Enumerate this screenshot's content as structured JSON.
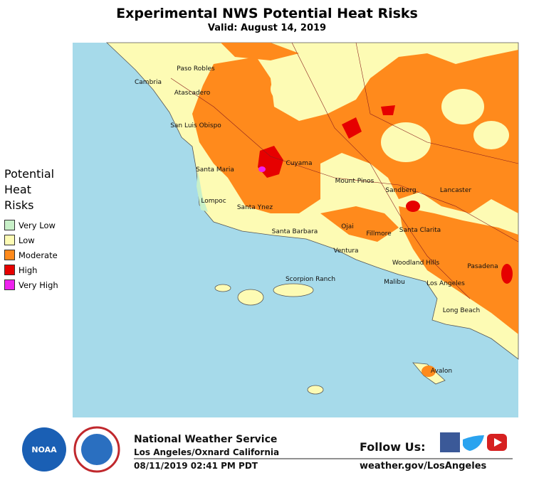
{
  "header": {
    "title": "Experimental NWS Potential Heat Risks",
    "subtitle": "Valid: August 14, 2019"
  },
  "legend": {
    "title": "Potential Heat Risks",
    "items": [
      {
        "label": "Very Low",
        "color": "#c8f0c8"
      },
      {
        "label": "Low",
        "color": "#fdfbb4"
      },
      {
        "label": "Moderate",
        "color": "#ff8a1c"
      },
      {
        "label": "High",
        "color": "#e60000"
      },
      {
        "label": "Very High",
        "color": "#ee22ee"
      }
    ]
  },
  "places": [
    "Paso Robles",
    "Cambria",
    "Atascadero",
    "San Luis Obispo",
    "Santa Maria",
    "Cuyama",
    "Lompoc",
    "Santa Ynez",
    "Mount Pinos",
    "Sandberg",
    "Lancaster",
    "Ojai",
    "Fillmore",
    "Santa Clarita",
    "Santa Barbara",
    "Ventura",
    "Woodland Hills",
    "Pasadena",
    "Scorpion Ranch",
    "Malibu",
    "Los Angeles",
    "Long Beach",
    "Avalon"
  ],
  "footer": {
    "logo": "NOAA",
    "agency": "National Weather Service",
    "office": "Los Angeles/Oxnard California",
    "issued": "08/11/2019 02:41 PM PDT",
    "follow": "Follow Us:",
    "url": "weather.gov/LosAngeles"
  }
}
